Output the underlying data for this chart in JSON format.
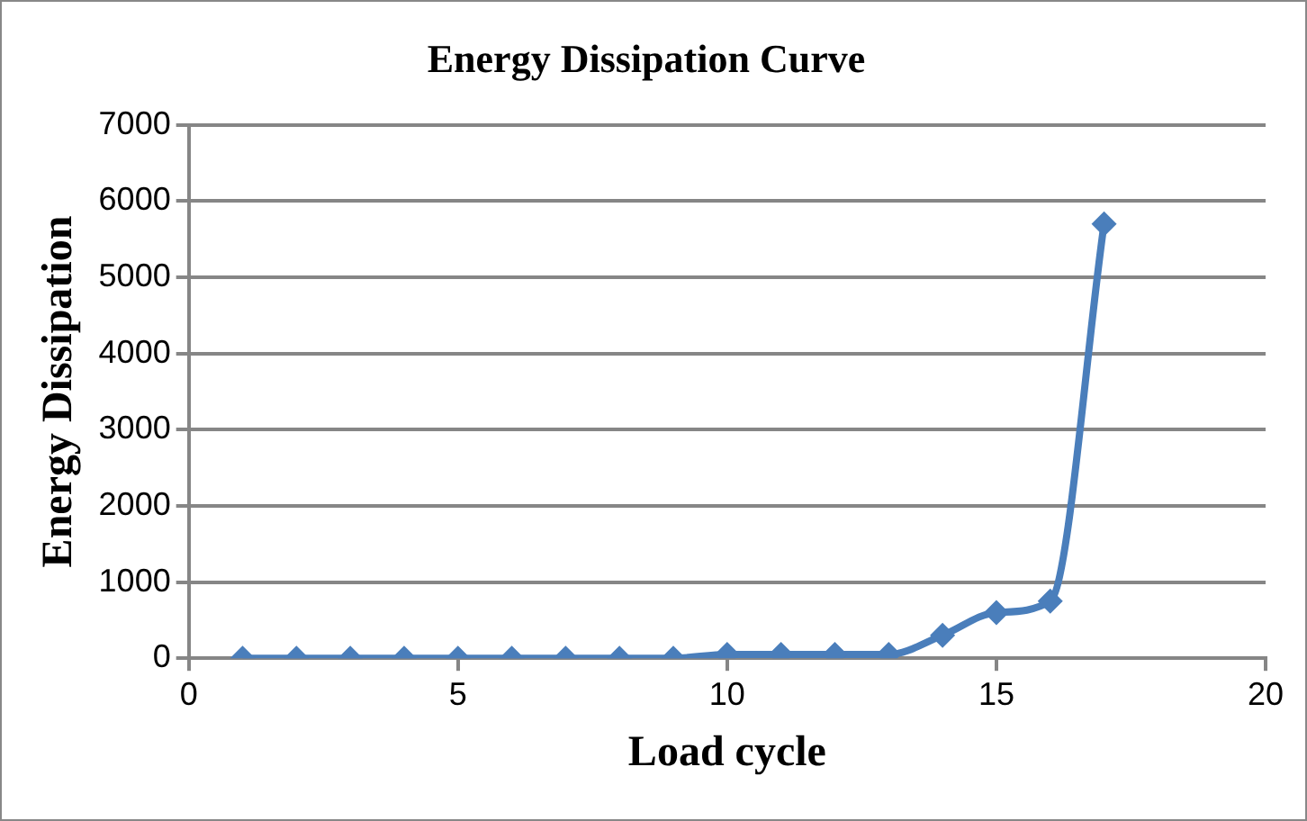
{
  "chart_data": {
    "type": "line",
    "title": "Energy Dissipation Curve",
    "xlabel": "Load cycle",
    "ylabel": "Energy Dissipation",
    "x": [
      1,
      2,
      3,
      4,
      5,
      6,
      7,
      8,
      9,
      10,
      11,
      12,
      13,
      14,
      15,
      16,
      17
    ],
    "series": [
      {
        "color": "#4a7ebb",
        "values": [
          0,
          0,
          0,
          0,
          0,
          0,
          0,
          0,
          0,
          50,
          50,
          50,
          50,
          300,
          600,
          750,
          5700
        ]
      }
    ],
    "xlim": [
      0,
      20
    ],
    "xticks": [
      0,
      5,
      10,
      15,
      20
    ],
    "ylim": [
      0,
      7000
    ],
    "yticks": [
      0,
      1000,
      2000,
      3000,
      4000,
      5000,
      6000,
      7000
    ],
    "grid": "y",
    "legend": false,
    "marker": "diamond",
    "line_style": "solid"
  }
}
